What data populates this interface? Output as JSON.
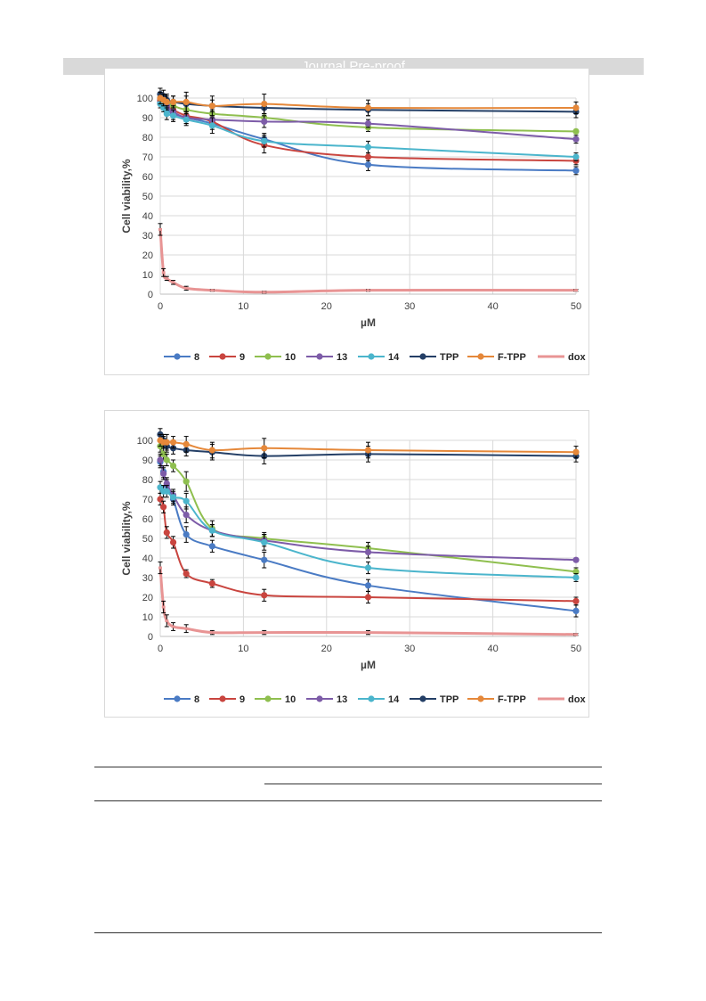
{
  "header": {
    "text": "Journal Pre-proof"
  },
  "colors": {
    "8": "#4a7bc4",
    "9": "#c9453f",
    "10": "#8fbf4f",
    "13": "#7d5ca8",
    "14": "#4bb5cc",
    "TPP": "#243f66",
    "F-TPP": "#e5883a",
    "dox": "#e89494"
  },
  "chart_data": [
    {
      "type": "line",
      "xlabel": "µM",
      "ylabel": "Cell viability,%",
      "xlim": [
        0,
        50
      ],
      "ylim": [
        0,
        100
      ],
      "xticks": [
        0,
        10,
        20,
        30,
        40,
        50
      ],
      "yticks": [
        0,
        10,
        20,
        30,
        40,
        50,
        60,
        70,
        80,
        90,
        100
      ],
      "grid": true,
      "legend": "bottom",
      "series": [
        {
          "name": "8",
          "x": [
            0,
            0.39,
            0.78,
            1.56,
            3.125,
            6.25,
            12.5,
            25,
            50
          ],
          "y": [
            98,
            96,
            94,
            92,
            90,
            87,
            79,
            66,
            63
          ],
          "err": [
            2,
            2,
            3,
            3,
            3,
            3,
            3,
            3,
            2
          ]
        },
        {
          "name": "9",
          "x": [
            0,
            0.39,
            0.78,
            1.56,
            3.125,
            6.25,
            12.5,
            25,
            50
          ],
          "y": [
            99,
            98,
            96,
            94,
            91,
            88,
            76,
            70,
            68
          ],
          "err": [
            2,
            2,
            2,
            3,
            3,
            3,
            4,
            2,
            2
          ]
        },
        {
          "name": "10",
          "x": [
            0,
            0.39,
            0.78,
            1.56,
            3.125,
            6.25,
            12.5,
            25,
            50
          ],
          "y": [
            100,
            99,
            98,
            96,
            94,
            92,
            90,
            85,
            83
          ],
          "err": [
            2,
            2,
            2,
            2,
            3,
            2,
            2,
            2,
            1
          ]
        },
        {
          "name": "13",
          "x": [
            0,
            0.39,
            0.78,
            1.56,
            3.125,
            6.25,
            12.5,
            25,
            50
          ],
          "y": [
            100,
            98,
            96,
            93,
            90,
            89,
            88,
            87,
            79
          ],
          "err": [
            2,
            2,
            3,
            3,
            3,
            2,
            3,
            2,
            2
          ]
        },
        {
          "name": "14",
          "x": [
            0,
            0.39,
            0.78,
            1.56,
            3.125,
            6.25,
            12.5,
            25,
            50
          ],
          "y": [
            97,
            95,
            92,
            91,
            89,
            86,
            78,
            75,
            70
          ],
          "err": [
            2,
            2,
            3,
            3,
            3,
            4,
            3,
            3,
            2
          ]
        },
        {
          "name": "TPP",
          "x": [
            0,
            0.39,
            0.78,
            1.56,
            3.125,
            6.25,
            12.5,
            25,
            50
          ],
          "y": [
            102,
            101,
            99,
            98,
            97,
            96,
            95,
            94,
            93
          ],
          "err": [
            3,
            3,
            3,
            3,
            4,
            3,
            3,
            3,
            3
          ]
        },
        {
          "name": "F-TPP",
          "x": [
            0,
            0.39,
            0.78,
            1.56,
            3.125,
            6.25,
            12.5,
            25,
            50
          ],
          "y": [
            100,
            99,
            98,
            98,
            98,
            96,
            97,
            95,
            95
          ],
          "err": [
            3,
            3,
            3,
            3,
            5,
            5,
            5,
            4,
            3
          ]
        },
        {
          "name": "dox",
          "x": [
            0,
            0.39,
            0.78,
            1.56,
            3.125,
            6.25,
            12.5,
            25,
            50
          ],
          "y": [
            33,
            11,
            8,
            6,
            3,
            2,
            1,
            2,
            2
          ],
          "err": [
            3,
            2,
            1,
            1,
            1,
            0.5,
            0.5,
            0.5,
            0.5
          ]
        }
      ]
    },
    {
      "type": "line",
      "xlabel": "µM",
      "ylabel": "Cell viability,%",
      "xlim": [
        0,
        50
      ],
      "ylim": [
        0,
        100
      ],
      "xticks": [
        0,
        10,
        20,
        30,
        40,
        50
      ],
      "yticks": [
        0,
        10,
        20,
        30,
        40,
        50,
        60,
        70,
        80,
        90,
        100
      ],
      "grid": true,
      "legend": "bottom",
      "series": [
        {
          "name": "8",
          "x": [
            0,
            0.39,
            0.78,
            1.56,
            3.125,
            6.25,
            12.5,
            25,
            50
          ],
          "y": [
            89,
            84,
            77,
            70,
            52,
            46,
            39,
            26,
            13
          ],
          "err": [
            3,
            3,
            3,
            3,
            4,
            3,
            4,
            3,
            3
          ]
        },
        {
          "name": "9",
          "x": [
            0,
            0.39,
            0.78,
            1.56,
            3.125,
            6.25,
            12.5,
            25,
            50
          ],
          "y": [
            70,
            66,
            53,
            48,
            32,
            27,
            21,
            20,
            18
          ],
          "err": [
            3,
            3,
            3,
            3,
            2,
            2,
            3,
            3,
            2
          ]
        },
        {
          "name": "10",
          "x": [
            0,
            0.39,
            0.78,
            1.56,
            3.125,
            6.25,
            12.5,
            25,
            50
          ],
          "y": [
            97,
            93,
            90,
            87,
            79,
            55,
            50,
            45,
            33
          ],
          "err": [
            3,
            3,
            3,
            3,
            5,
            4,
            3,
            3,
            2
          ]
        },
        {
          "name": "13",
          "x": [
            0,
            0.39,
            0.78,
            1.56,
            3.125,
            6.25,
            12.5,
            25,
            50
          ],
          "y": [
            90,
            83,
            78,
            72,
            62,
            54,
            49,
            43,
            39
          ],
          "err": [
            3,
            3,
            3,
            3,
            4,
            3,
            3,
            3,
            1
          ]
        },
        {
          "name": "14",
          "x": [
            0,
            0.39,
            0.78,
            1.56,
            3.125,
            6.25,
            12.5,
            25,
            50
          ],
          "y": [
            76,
            74,
            74,
            71,
            69,
            54,
            48,
            35,
            30
          ],
          "err": [
            3,
            3,
            3,
            3,
            4,
            3,
            4,
            3,
            2
          ]
        },
        {
          "name": "TPP",
          "x": [
            0,
            0.39,
            0.78,
            1.56,
            3.125,
            6.25,
            12.5,
            25,
            50
          ],
          "y": [
            103,
            100,
            97,
            96,
            95,
            94,
            92,
            93,
            92
          ],
          "err": [
            3,
            3,
            3,
            3,
            3,
            4,
            4,
            4,
            3
          ]
        },
        {
          "name": "F-TPP",
          "x": [
            0,
            0.39,
            0.78,
            1.56,
            3.125,
            6.25,
            12.5,
            25,
            50
          ],
          "y": [
            100,
            99,
            99,
            99,
            98,
            95,
            96,
            95,
            94
          ],
          "err": [
            3,
            3,
            4,
            3,
            4,
            4,
            5,
            4,
            3
          ]
        },
        {
          "name": "dox",
          "x": [
            0,
            0.39,
            0.78,
            1.56,
            3.125,
            6.25,
            12.5,
            25,
            50
          ],
          "y": [
            35,
            15,
            8,
            5,
            4,
            2,
            2,
            2,
            1
          ],
          "err": [
            3,
            3,
            3,
            2,
            2,
            1,
            1,
            1,
            0.5
          ]
        }
      ]
    }
  ]
}
